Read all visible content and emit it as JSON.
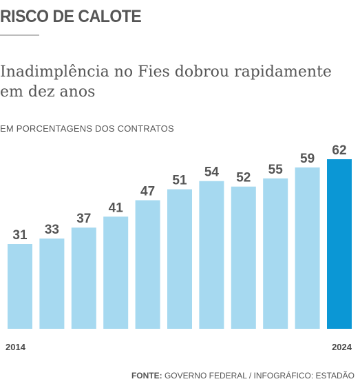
{
  "header": {
    "kicker": "RISCO DE CALOTE",
    "title": "Inadimplência no Fies dobrou rapidamente em dez anos",
    "subtitle": "EM PORCENTAGENS DOS CONTRATOS"
  },
  "footer": {
    "source_label": "FONTE:",
    "source_text": "GOVERNO FEDERAL / INFOGRÁFICO: ESTADÃO"
  },
  "colors": {
    "bar": "#a6d9f0",
    "highlight_bar": "#0b97d5"
  },
  "chart_data": {
    "type": "bar",
    "title": "Inadimplência no Fies dobrou rapidamente em dez anos",
    "subtitle": "EM PORCENTAGENS DOS CONTRATOS",
    "categories": [
      "2014",
      "",
      "",
      "",
      "",
      "",
      "",
      "",
      "",
      "",
      "2024"
    ],
    "values": [
      31,
      33,
      37,
      41,
      47,
      51,
      54,
      52,
      55,
      59,
      62
    ],
    "data_labels": [
      "31",
      "33",
      "37",
      "41",
      "47",
      "51",
      "54",
      "52",
      "55",
      "59",
      "62"
    ],
    "highlight_index": 10,
    "ylim": [
      0,
      62
    ],
    "grid": false,
    "legend": "none"
  }
}
